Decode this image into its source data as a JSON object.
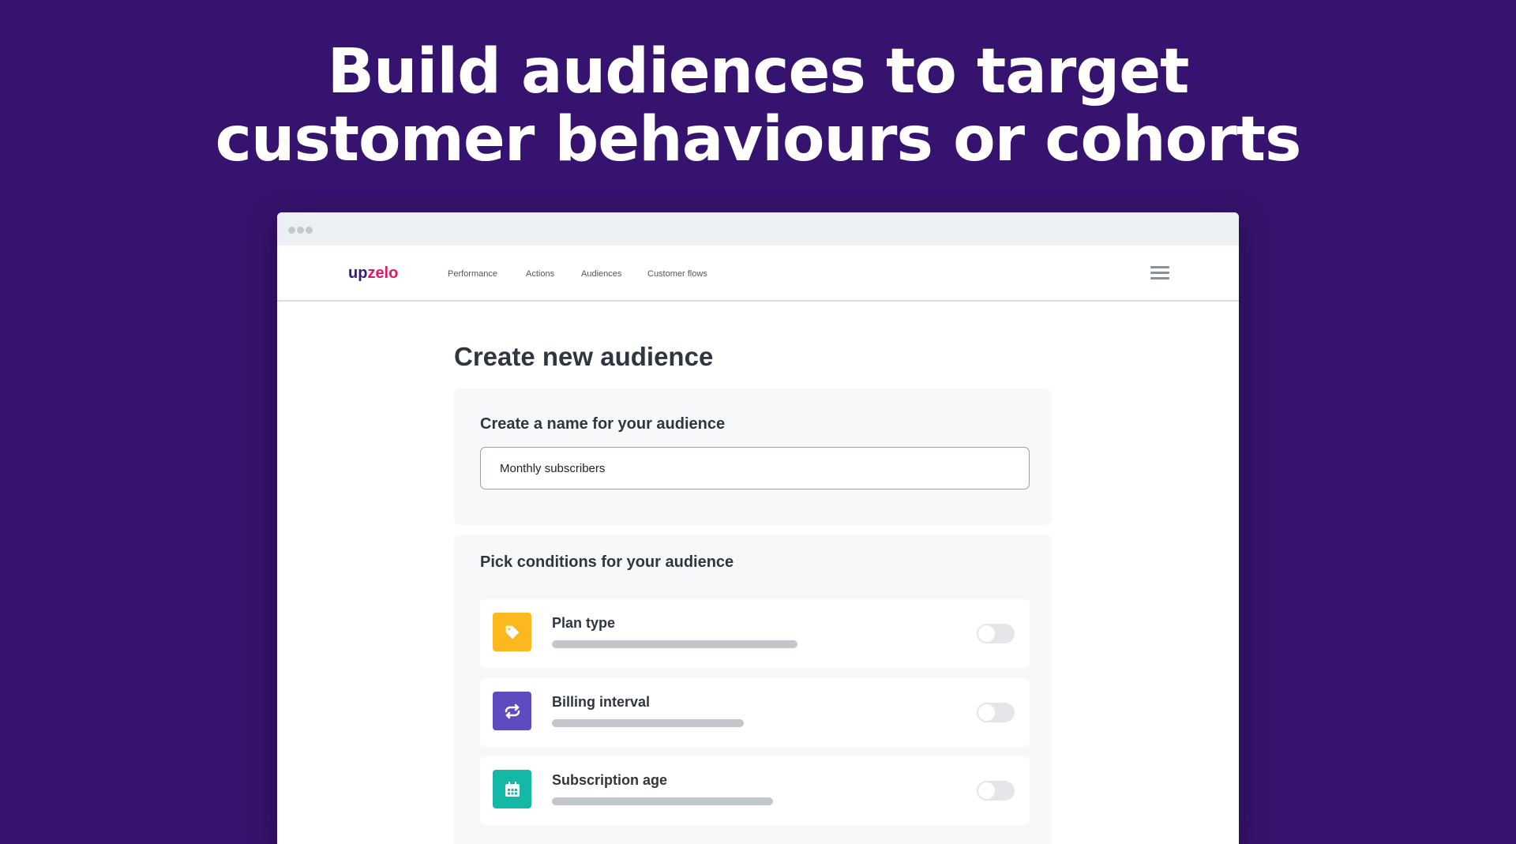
{
  "headline": {
    "line1": "Build audiences to target",
    "line2": "customer behaviours or cohorts"
  },
  "nav": {
    "logo": "upzelo",
    "items": [
      "Performance",
      "Actions",
      "Audiences",
      "Customer flows"
    ]
  },
  "page": {
    "title": "Create new audience"
  },
  "name_card": {
    "label": "Create a name for your audience",
    "value": "Monthly subscribers"
  },
  "conditions": {
    "label": "Pick conditions for your audience",
    "items": [
      {
        "label": "Plan type",
        "icon": "tag-icon",
        "color": "#fbb81f",
        "enabled": false
      },
      {
        "label": "Billing interval",
        "icon": "repeat-icon",
        "color": "#5e4bbf",
        "enabled": false
      },
      {
        "label": "Subscription age",
        "icon": "calendar-icon",
        "color": "#14b8a6",
        "enabled": false
      }
    ]
  }
}
